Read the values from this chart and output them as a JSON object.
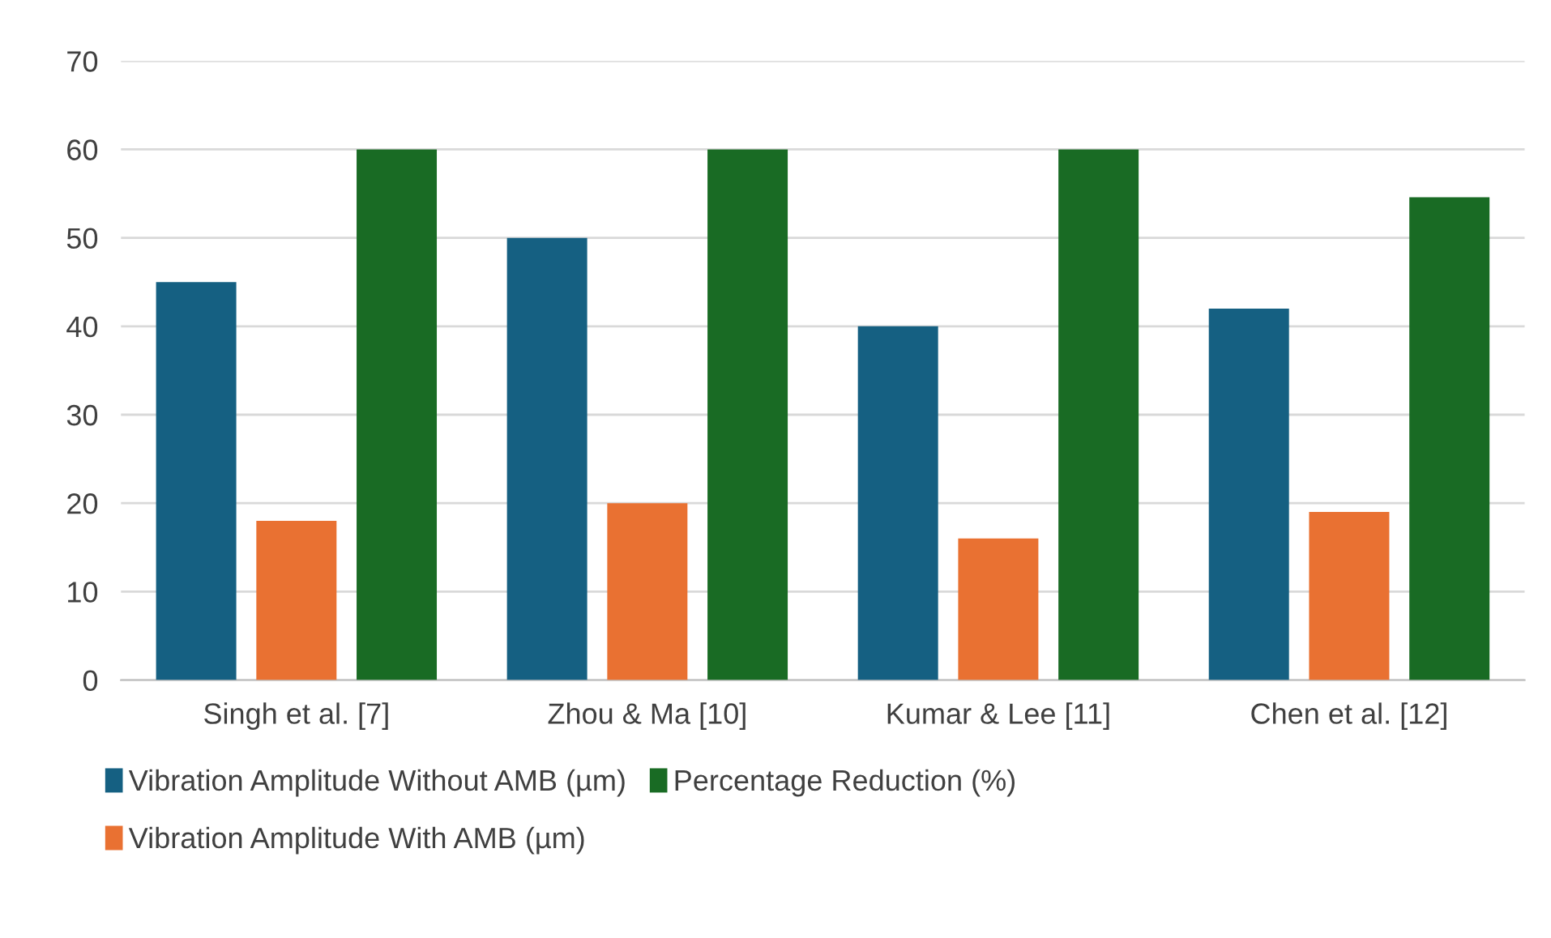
{
  "chart_data": {
    "type": "bar",
    "categories": [
      "Singh et al. [7]",
      "Zhou & Ma [10]",
      "Kumar & Lee [11]",
      "Chen et al. [12]"
    ],
    "series": [
      {
        "name": "Vibration Amplitude Without AMB (µm)",
        "color": "#156082",
        "values": [
          45,
          50,
          40,
          42
        ]
      },
      {
        "name": "Vibration Amplitude With AMB (µm)",
        "color": "#e97132",
        "values": [
          18,
          20,
          16,
          19
        ]
      },
      {
        "name": "Percentage Reduction (%)",
        "color": "#196b24",
        "values": [
          60,
          60,
          60,
          54.6
        ]
      }
    ],
    "ylim": [
      0,
      70
    ],
    "yticks": [
      0,
      10,
      20,
      30,
      40,
      50,
      60,
      70
    ],
    "grid": "y",
    "legend": "bottom"
  }
}
